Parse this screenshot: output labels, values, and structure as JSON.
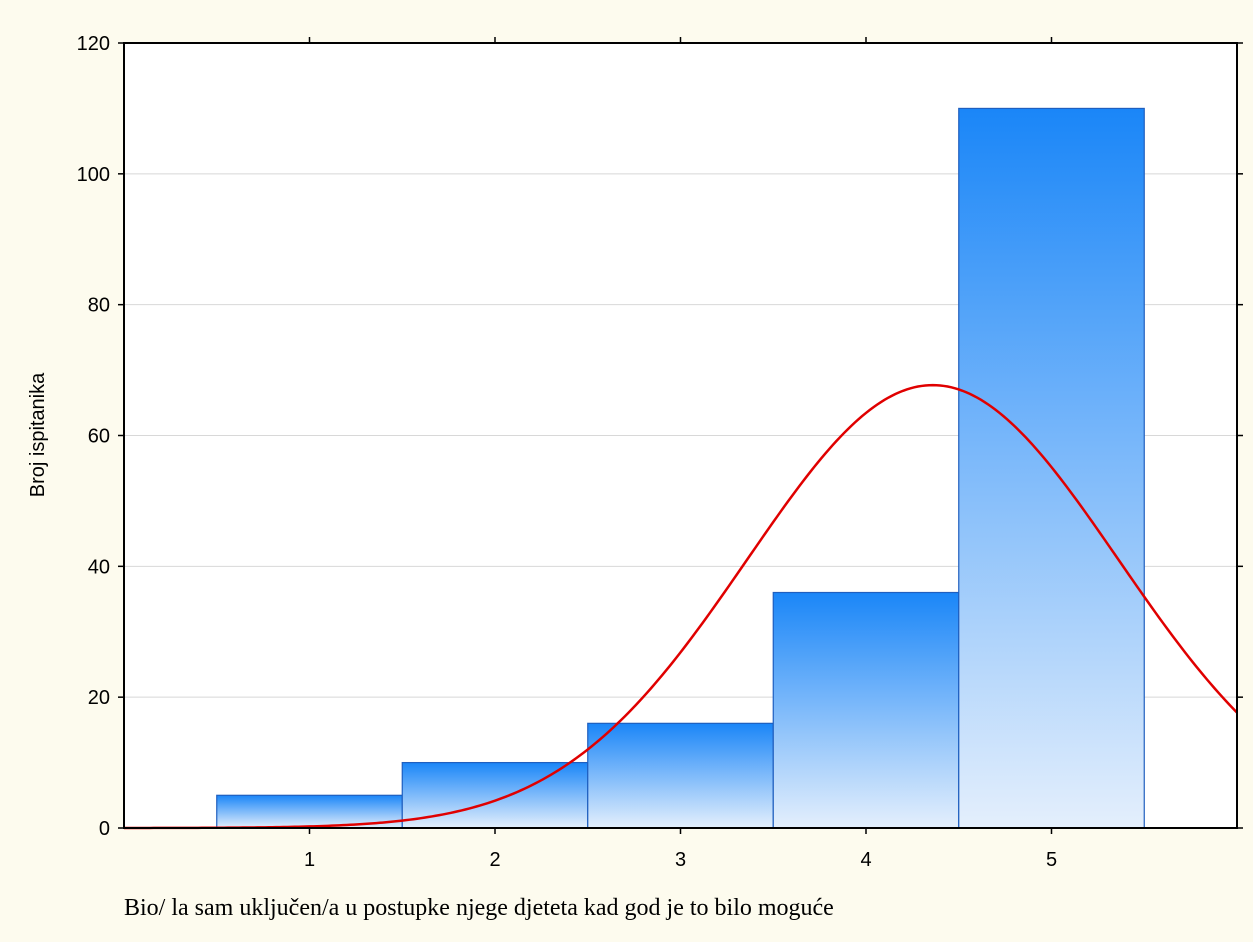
{
  "chart_data": {
    "type": "bar",
    "title": "",
    "xlabel": "Bio/ la sam uključen/a u postupke njege djeteta kad god je to bilo moguće",
    "ylabel": "Broj ispitanika",
    "categories": [
      "1",
      "2",
      "3",
      "4",
      "5"
    ],
    "values": [
      5,
      10,
      16,
      36,
      110
    ],
    "xlim": [
      0,
      6
    ],
    "ylim": [
      0,
      120
    ],
    "yticks": [
      0,
      20,
      40,
      60,
      80,
      100,
      120
    ],
    "xticks": [
      "1",
      "2",
      "3",
      "4",
      "5"
    ],
    "grid": true,
    "legend": "none",
    "overlay": {
      "type": "normal-curve",
      "mean": 4.36,
      "sd": 1.0,
      "peak": 67.7,
      "color": "#e00000"
    },
    "colors": {
      "bar_top": "#1a86f8",
      "bar_bottom": "#e4effc",
      "bar_edge": "#1f5fbf",
      "background": "#fdfbee",
      "plot_bg": "#ffffff",
      "grid": "#d8d8d8"
    }
  }
}
